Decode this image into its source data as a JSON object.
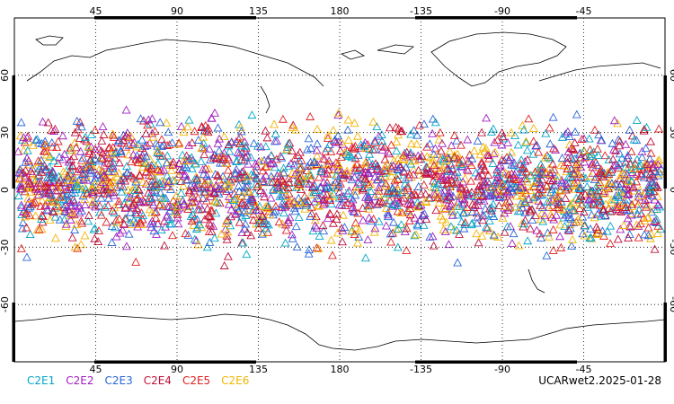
{
  "map": {
    "lon_ticks": [
      "45",
      "90",
      "135",
      "180",
      "-135",
      "-90",
      "-45"
    ],
    "lat_ticks": [
      "60",
      "30",
      "0",
      "-30",
      "-60"
    ],
    "marker": "open-triangle",
    "lat_band": [
      -42,
      48
    ]
  },
  "legend": {
    "items": [
      {
        "label": "C2E1",
        "color": "#00a6c8"
      },
      {
        "label": "C2E2",
        "color": "#a020c0"
      },
      {
        "label": "C2E3",
        "color": "#2866d8"
      },
      {
        "label": "C2E4",
        "color": "#c0103a"
      },
      {
        "label": "C2E5",
        "color": "#e02020"
      },
      {
        "label": "C2E6",
        "color": "#f4b400"
      }
    ]
  },
  "product_label": "UCARwet2.2025-01-28"
}
